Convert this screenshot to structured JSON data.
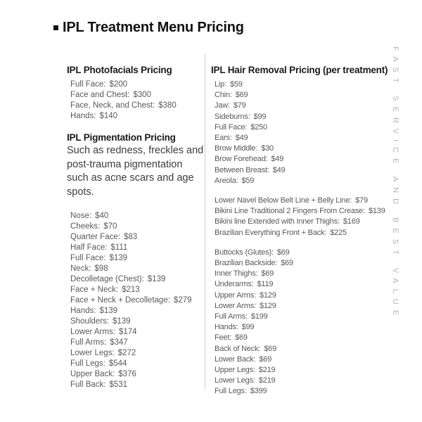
{
  "title": {
    "bullet": "square",
    "text": "IPL Treatment Menu Pricing"
  },
  "left_column": {
    "photofacials": {
      "heading": "IPL Photofacials Pricing",
      "items": [
        {
          "label": "Full Face",
          "price": "$200"
        },
        {
          "label": "Face and Chest",
          "price": "$300"
        },
        {
          "label": "Face, Neck, and Chest",
          "price": "$380"
        },
        {
          "label": "Hands",
          "price": "$140"
        }
      ]
    },
    "pigmentation": {
      "heading": "IPL Pigmentation Pricing",
      "description": "Such as redness, freckles and post-trauma pigmentation such as acne scars and age spots.",
      "items": [
        {
          "label": "Nose",
          "price": "$40"
        },
        {
          "label": "Cheeks",
          "price": "$70"
        },
        {
          "label": "Quarter Face",
          "price": "$83"
        },
        {
          "label": "Half Face",
          "price": "$111"
        },
        {
          "label": "Full Face",
          "price": "$139"
        },
        {
          "label": "Neck",
          "price": "$98"
        },
        {
          "label": "Decolletage (Chest)",
          "price": "$139"
        },
        {
          "label": "Face + Neck",
          "price": "$213"
        },
        {
          "label": "Face + Neck + Decolletage",
          "price": "$279"
        },
        {
          "label": "Hands",
          "price": "$139"
        },
        {
          "label": "Shoulders",
          "price": "$139"
        },
        {
          "label": "Lower Arms",
          "price": "$174"
        },
        {
          "label": "Full Arms",
          "price": "$347"
        },
        {
          "label": "Lower Legs",
          "price": "$272"
        },
        {
          "label": "Full Legs",
          "price": "$544"
        },
        {
          "label": "Upper Back",
          "price": "$376"
        },
        {
          "label": "Full Back",
          "price": "$531"
        }
      ]
    }
  },
  "right_column": {
    "hair_removal": {
      "heading": "IPL Hair Removal Pricing (per treatment)",
      "group1": [
        {
          "label": "Lip",
          "price": "$59"
        },
        {
          "label": "Chin",
          "price": "$69"
        },
        {
          "label": "Jaw",
          "price": "$79"
        },
        {
          "label": "Sideburns",
          "price": "$99"
        },
        {
          "label": "Full Face",
          "price": "$250"
        },
        {
          "label": "Ears",
          "price": "$49"
        },
        {
          "label": "Brow Middle",
          "price": "$30"
        },
        {
          "label": "Brow Forehead",
          "price": "$49"
        },
        {
          "label": "Between Breast",
          "price": "$49"
        },
        {
          "label": "Areola",
          "price": "$59"
        }
      ],
      "group2": [
        {
          "label": "Lower Navel Below Belt Line + Belly Line",
          "price": "$79"
        },
        {
          "label": "Bikini Line Traditional 2 Fingers From Crease",
          "price": "$139"
        },
        {
          "label": "Bikini line Extended with Inner Thighs",
          "price": "$169"
        },
        {
          "label": "Brazilian Everything Front + Back",
          "price": "$225"
        }
      ],
      "group3": [
        {
          "label": "Buttocks (Glutes)",
          "price": "$69"
        },
        {
          "label": "Brazilian Backside",
          "price": "$69"
        },
        {
          "label": "Inner Thighs",
          "price": "$69"
        },
        {
          "label": "Underarms",
          "price": "$119"
        },
        {
          "label": "Upper Arms",
          "price": "$129"
        },
        {
          "label": "Lower Arms",
          "price": "$129"
        },
        {
          "label": "Full Arms",
          "price": "$199"
        },
        {
          "label": "Hands",
          "price": "$99"
        },
        {
          "label": "Feet",
          "price": "$69"
        },
        {
          "label": "Back of Neck",
          "price": "$69"
        },
        {
          "label": "Lower Back",
          "price": "$69"
        },
        {
          "label": "Upper Legs",
          "price": "$219"
        },
        {
          "label": "Lower Legs",
          "price": "$219"
        },
        {
          "label": "Full Legs",
          "price": "$399"
        }
      ]
    }
  },
  "vertical_tagline": "FAST SERVICE AND BEST VALUE",
  "colors": {
    "title_text": "#111111",
    "heading_text": "#1a1a1a",
    "item_text": "#595959",
    "description_text": "#3c3c3c",
    "divider": "#cccccc",
    "vertical_tagline_text": "#b5b5b5",
    "background": "#ffffff"
  }
}
